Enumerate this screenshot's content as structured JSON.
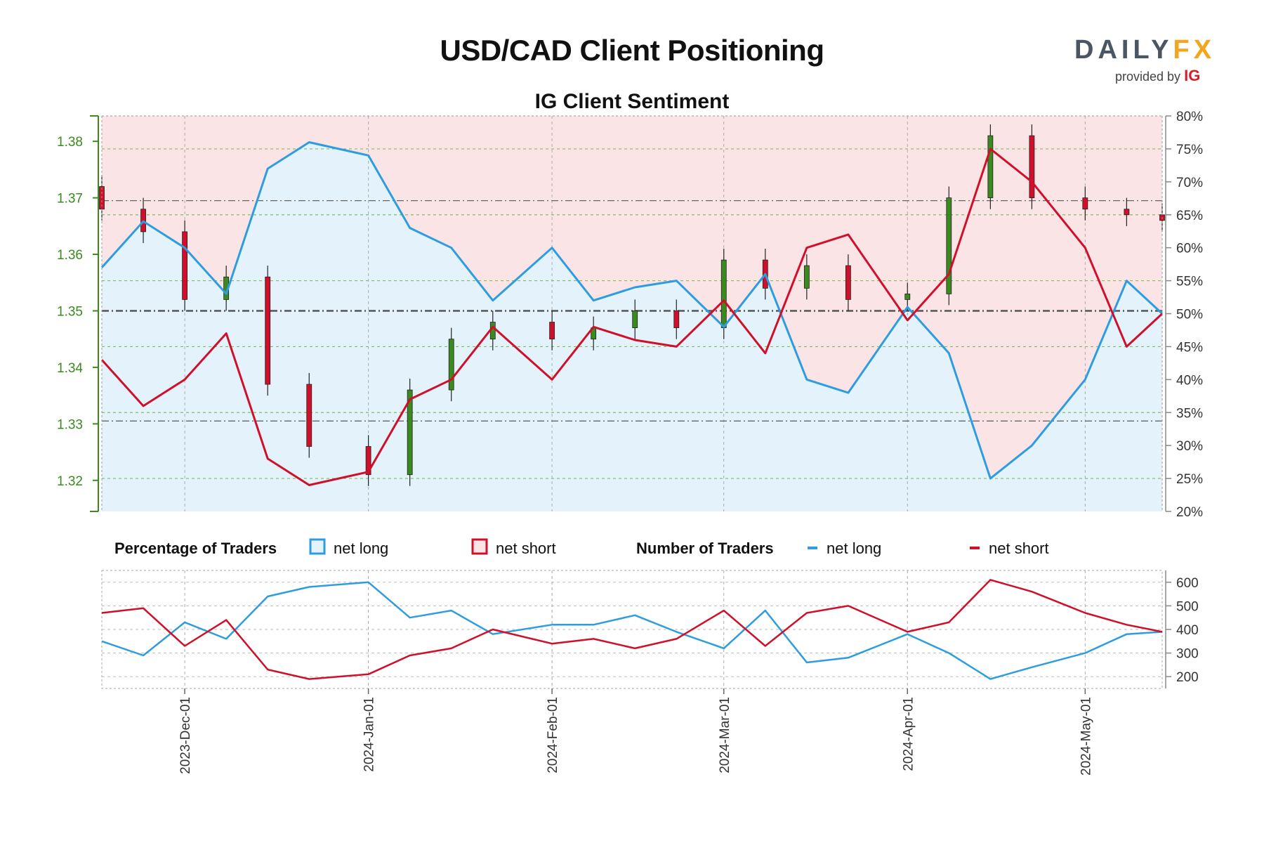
{
  "title": "USD/CAD Client Positioning",
  "subtitle": "IG Client Sentiment",
  "logo": {
    "brand_left": "DAILY",
    "brand_right": "FX",
    "provided_by": "provided by",
    "provider": "IG"
  },
  "colors": {
    "long": "#2e9de0",
    "short": "#d0102a",
    "long_fill": "#e3f2fb",
    "short_fill": "#fbe4e6",
    "bull_candle": "#3a8a1f",
    "bear_candle": "#d0102a",
    "price_axis": "#3a8a1f"
  },
  "legend": {
    "pct_heading": "Percentage of Traders",
    "pct_long": "net long",
    "pct_short": "net short",
    "num_heading": "Number of Traders",
    "num_long": "net long",
    "num_short": "net short"
  },
  "chart_data": {
    "type": "line",
    "x_dates": [
      "2023-11-17",
      "2023-11-24",
      "2023-12-01",
      "2023-12-08",
      "2023-12-15",
      "2023-12-22",
      "2024-01-01",
      "2024-01-08",
      "2024-01-15",
      "2024-01-22",
      "2024-02-01",
      "2024-02-08",
      "2024-02-15",
      "2024-02-22",
      "2024-03-01",
      "2024-03-08",
      "2024-03-15",
      "2024-03-22",
      "2024-04-01",
      "2024-04-08",
      "2024-04-15",
      "2024-04-22",
      "2024-05-01",
      "2024-05-08",
      "2024-05-14"
    ],
    "x_tick_labels": [
      "2023-Dec-01",
      "2024-Jan-01",
      "2024-Feb-01",
      "2024-Mar-01",
      "2024-Apr-01",
      "2024-May-01"
    ],
    "price_axis": {
      "ticks": [
        "1.32",
        "1.33",
        "1.34",
        "1.35",
        "1.36",
        "1.37",
        "1.38"
      ],
      "ylim": [
        1.3145,
        1.3845
      ]
    },
    "pct_axis": {
      "ticks": [
        "20%",
        "25%",
        "30%",
        "35%",
        "40%",
        "45%",
        "50%",
        "55%",
        "60%",
        "65%",
        "70%",
        "75%",
        "80%"
      ],
      "ylim": [
        20,
        80
      ]
    },
    "count_axis": {
      "ticks": [
        "200",
        "300",
        "400",
        "500",
        "600"
      ],
      "ylim": [
        150,
        650
      ]
    },
    "price_close": [
      1.368,
      1.364,
      1.352,
      1.356,
      1.337,
      1.326,
      1.321,
      1.336,
      1.345,
      1.348,
      1.345,
      1.347,
      1.35,
      1.347,
      1.359,
      1.354,
      1.358,
      1.352,
      1.353,
      1.37,
      1.381,
      1.37,
      1.368,
      1.367,
      1.366
    ],
    "series": [
      {
        "name": "net long",
        "values": [
          57,
          64,
          60,
          53,
          72,
          76,
          74,
          63,
          60,
          52,
          60,
          52,
          54,
          55,
          48,
          56,
          40,
          38,
          51,
          44,
          25,
          30,
          40,
          55,
          50
        ]
      },
      {
        "name": "net short",
        "values": [
          43,
          36,
          40,
          47,
          28,
          24,
          26,
          37,
          40,
          48,
          40,
          48,
          46,
          45,
          52,
          44,
          60,
          62,
          49,
          56,
          75,
          70,
          60,
          45,
          50
        ]
      }
    ],
    "traders_long": [
      350,
      290,
      430,
      360,
      540,
      580,
      600,
      450,
      480,
      380,
      420,
      420,
      460,
      390,
      320,
      480,
      260,
      280,
      380,
      300,
      190,
      240,
      300,
      380,
      390
    ],
    "traders_short": [
      470,
      490,
      330,
      440,
      230,
      190,
      210,
      290,
      320,
      400,
      340,
      360,
      320,
      360,
      480,
      330,
      470,
      500,
      390,
      430,
      610,
      560,
      470,
      420,
      390
    ],
    "reference_lines": [
      1.3695,
      1.35,
      1.3305
    ]
  }
}
